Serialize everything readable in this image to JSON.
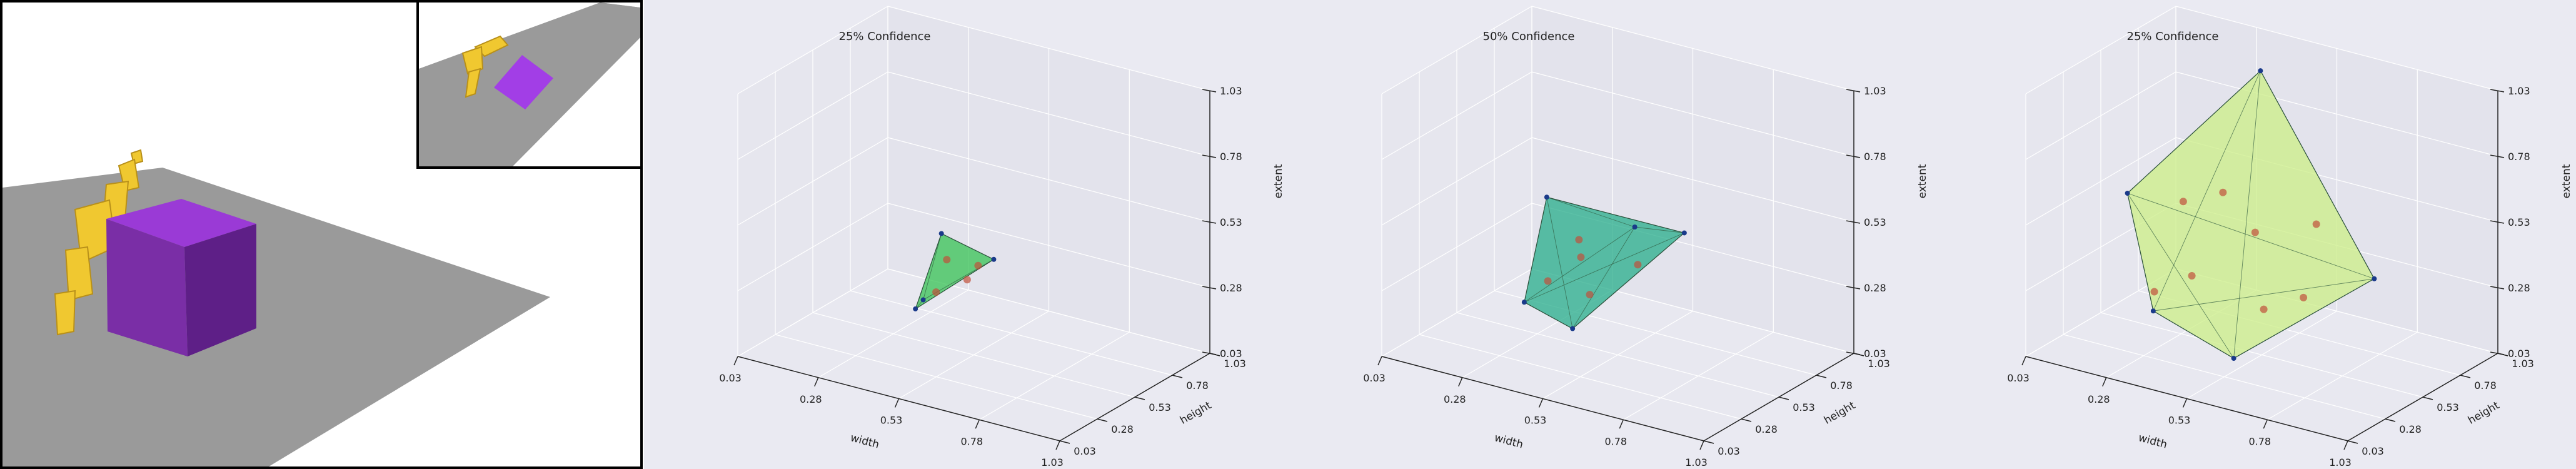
{
  "render_view": {
    "description_icons": {
      "robot_arm": "robot-arm-icon",
      "cube": "cube-icon"
    },
    "colors": {
      "floor": "#9a9a9a",
      "frame": "#000000",
      "arm": "#f0c830",
      "cube_front": "#7a2ea6",
      "cube_side": "#5e1f87",
      "cube_top": "#9a3ad6",
      "inset_cube": "#a23ee6"
    }
  },
  "chart_data": [
    {
      "type": "scatter3d",
      "title": "25% Confidence",
      "xlabel": "width",
      "ylabel": "height",
      "zlabel": "extent",
      "x_ticks": [
        "0.03",
        "0.28",
        "0.53",
        "0.78",
        "1.03"
      ],
      "y_ticks": [
        "0.03",
        "0.28",
        "0.53",
        "0.78",
        "1.03"
      ],
      "z_ticks": [
        "0.03",
        "0.28",
        "0.53",
        "0.78",
        "1.03"
      ],
      "xlim": [
        0.03,
        1.03
      ],
      "ylim": [
        0.03,
        1.03
      ],
      "zlim": [
        0.03,
        1.03
      ],
      "hull_color": "#3ec45a",
      "hull_vertices": [
        {
          "x": 0.42,
          "y": 0.55,
          "z": 0.45
        },
        {
          "x": 0.55,
          "y": 0.62,
          "z": 0.37
        },
        {
          "x": 0.4,
          "y": 0.42,
          "z": 0.2
        },
        {
          "x": 0.48,
          "y": 0.3,
          "z": 0.3
        }
      ],
      "interior_points": [
        {
          "x": 0.46,
          "y": 0.5,
          "z": 0.38
        },
        {
          "x": 0.5,
          "y": 0.55,
          "z": 0.3
        },
        {
          "x": 0.45,
          "y": 0.45,
          "z": 0.27
        },
        {
          "x": 0.52,
          "y": 0.58,
          "z": 0.35
        }
      ]
    },
    {
      "type": "scatter3d",
      "title": "50% Confidence",
      "xlabel": "width",
      "ylabel": "height",
      "zlabel": "extent",
      "x_ticks": [
        "0.03",
        "0.28",
        "0.53",
        "0.78",
        "1.03"
      ],
      "y_ticks": [
        "0.03",
        "0.28",
        "0.53",
        "0.78",
        "1.03"
      ],
      "z_ticks": [
        "0.03",
        "0.28",
        "0.53",
        "0.78",
        "1.03"
      ],
      "xlim": [
        0.03,
        1.03
      ],
      "ylim": [
        0.03,
        1.03
      ],
      "zlim": [
        0.03,
        1.03
      ],
      "hull_color": "#2eb08e",
      "hull_vertices": [
        {
          "x": 0.3,
          "y": 0.55,
          "z": 0.55
        },
        {
          "x": 0.62,
          "y": 0.78,
          "z": 0.44
        },
        {
          "x": 0.3,
          "y": 0.4,
          "z": 0.2
        },
        {
          "x": 0.52,
          "y": 0.25,
          "z": 0.22
        },
        {
          "x": 0.55,
          "y": 0.6,
          "z": 0.5
        }
      ],
      "interior_points": [
        {
          "x": 0.4,
          "y": 0.55,
          "z": 0.42
        },
        {
          "x": 0.42,
          "y": 0.52,
          "z": 0.37
        },
        {
          "x": 0.35,
          "y": 0.45,
          "z": 0.28
        },
        {
          "x": 0.48,
          "y": 0.45,
          "z": 0.27
        },
        {
          "x": 0.55,
          "y": 0.62,
          "z": 0.35
        }
      ]
    },
    {
      "type": "scatter3d",
      "title": "25% Confidence",
      "xlabel": "width",
      "ylabel": "height",
      "zlabel": "extent",
      "x_ticks": [
        "0.03",
        "0.28",
        "0.53",
        "0.78",
        "1.03"
      ],
      "y_ticks": [
        "0.03",
        "0.28",
        "0.53",
        "0.78",
        "1.03"
      ],
      "z_ticks": [
        "0.03",
        "0.28",
        "0.53",
        "0.78",
        "1.03"
      ],
      "xlim": [
        0.03,
        1.03
      ],
      "ylim": [
        0.03,
        1.03
      ],
      "zlim": [
        0.03,
        1.03
      ],
      "hull_color": "#cdee8a",
      "hull_vertices": [
        {
          "x": 0.4,
          "y": 0.8,
          "z": 0.98
        },
        {
          "x": 0.15,
          "y": 0.45,
          "z": 0.55
        },
        {
          "x": 0.8,
          "y": 0.7,
          "z": 0.35
        },
        {
          "x": 0.3,
          "y": 0.3,
          "z": 0.2
        },
        {
          "x": 0.55,
          "y": 0.3,
          "z": 0.1
        }
      ],
      "interior_points": [
        {
          "x": 0.3,
          "y": 0.5,
          "z": 0.55
        },
        {
          "x": 0.4,
          "y": 0.55,
          "z": 0.6
        },
        {
          "x": 0.5,
          "y": 0.55,
          "z": 0.48
        },
        {
          "x": 0.62,
          "y": 0.7,
          "z": 0.5
        },
        {
          "x": 0.35,
          "y": 0.45,
          "z": 0.3
        },
        {
          "x": 0.55,
          "y": 0.5,
          "z": 0.22
        },
        {
          "x": 0.65,
          "y": 0.55,
          "z": 0.28
        },
        {
          "x": 0.28,
          "y": 0.35,
          "z": 0.25
        }
      ]
    }
  ]
}
